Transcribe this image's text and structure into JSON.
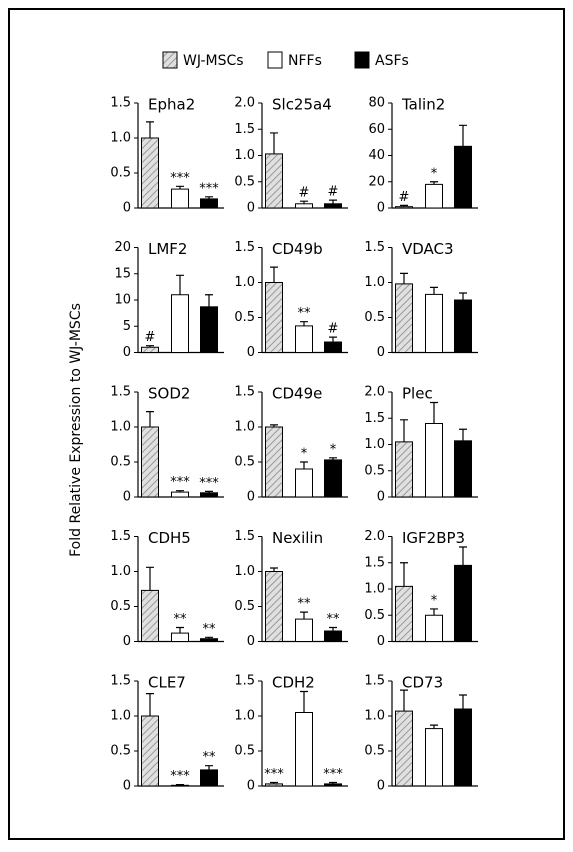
{
  "ylabel": "Fold Relative Expression to WJ-MSCs",
  "chart_data": [
    {
      "type": "bar",
      "title": "Epha2",
      "ylim": [
        0,
        1.5
      ],
      "yticks": [
        0,
        0.5,
        {
          "value": 1,
          "label": "1.0"
        },
        1.5
      ],
      "series": [
        {
          "name": "WJ-MSCs",
          "color": "#bbbbbb",
          "pattern": "hatch",
          "values": [
            1.0
          ],
          "errors": [
            0.23
          ],
          "annotations": [
            null
          ]
        },
        {
          "name": "NFFs",
          "color": "#ffffff",
          "values": [
            0.27
          ],
          "errors": [
            0.04
          ],
          "annotations": [
            "***"
          ]
        },
        {
          "name": "ASFs",
          "color": "#000000",
          "values": [
            0.13
          ],
          "errors": [
            0.03
          ],
          "annotations": [
            "***"
          ]
        }
      ]
    },
    {
      "type": "bar",
      "title": "Slc25a4",
      "ylim": [
        0,
        2
      ],
      "yticks": [
        0,
        0.5,
        {
          "value": 1,
          "label": "1.0"
        },
        1.5,
        {
          "value": 2,
          "label": "2.0"
        }
      ],
      "series": [
        {
          "name": "WJ-MSCs",
          "color": "#bbbbbb",
          "pattern": "hatch",
          "values": [
            1.03
          ],
          "errors": [
            0.4
          ],
          "annotations": [
            null
          ]
        },
        {
          "name": "NFFs",
          "color": "#ffffff",
          "values": [
            0.08
          ],
          "errors": [
            0.05
          ],
          "annotations": [
            "#"
          ]
        },
        {
          "name": "ASFs",
          "color": "#000000",
          "values": [
            0.08
          ],
          "errors": [
            0.07
          ],
          "annotations": [
            "#"
          ]
        }
      ]
    },
    {
      "type": "bar",
      "title": "Talin2",
      "ylim": [
        0,
        80
      ],
      "yticks": [
        0,
        20,
        40,
        60,
        80
      ],
      "series": [
        {
          "name": "WJ-MSCs",
          "color": "#bbbbbb",
          "pattern": "hatch",
          "values": [
            1
          ],
          "errors": [
            1
          ],
          "annotations": [
            "#"
          ]
        },
        {
          "name": "NFFs",
          "color": "#ffffff",
          "values": [
            18
          ],
          "errors": [
            2
          ],
          "annotations": [
            "*"
          ]
        },
        {
          "name": "ASFs",
          "color": "#000000",
          "values": [
            47
          ],
          "errors": [
            16
          ],
          "annotations": [
            null
          ]
        }
      ]
    },
    {
      "type": "bar",
      "title": "LMF2",
      "ylim": [
        0,
        20
      ],
      "yticks": [
        0,
        5,
        10,
        15,
        20
      ],
      "series": [
        {
          "name": "WJ-MSCs",
          "color": "#bbbbbb",
          "pattern": "hatch",
          "values": [
            1
          ],
          "errors": [
            0.3
          ],
          "annotations": [
            "#"
          ]
        },
        {
          "name": "NFFs",
          "color": "#ffffff",
          "values": [
            11
          ],
          "errors": [
            3.7
          ],
          "annotations": [
            null
          ]
        },
        {
          "name": "ASFs",
          "color": "#000000",
          "values": [
            8.7
          ],
          "errors": [
            2.3
          ],
          "annotations": [
            null
          ]
        }
      ]
    },
    {
      "type": "bar",
      "title": "CD49b",
      "ylim": [
        0,
        1.5
      ],
      "yticks": [
        0,
        0.5,
        {
          "value": 1,
          "label": "1.0"
        },
        1.5
      ],
      "series": [
        {
          "name": "WJ-MSCs",
          "color": "#bbbbbb",
          "pattern": "hatch",
          "values": [
            1.0
          ],
          "errors": [
            0.22
          ],
          "annotations": [
            null
          ]
        },
        {
          "name": "NFFs",
          "color": "#ffffff",
          "values": [
            0.38
          ],
          "errors": [
            0.06
          ],
          "annotations": [
            "**"
          ]
        },
        {
          "name": "ASFs",
          "color": "#000000",
          "values": [
            0.15
          ],
          "errors": [
            0.07
          ],
          "annotations": [
            "#"
          ]
        }
      ]
    },
    {
      "type": "bar",
      "title": "VDAC3",
      "ylim": [
        0,
        1.5
      ],
      "yticks": [
        0,
        0.5,
        {
          "value": 1,
          "label": "1.0"
        },
        1.5
      ],
      "series": [
        {
          "name": "WJ-MSCs",
          "color": "#bbbbbb",
          "pattern": "hatch",
          "values": [
            0.98
          ],
          "errors": [
            0.15
          ],
          "annotations": [
            null
          ]
        },
        {
          "name": "NFFs",
          "color": "#ffffff",
          "values": [
            0.83
          ],
          "errors": [
            0.1
          ],
          "annotations": [
            null
          ]
        },
        {
          "name": "ASFs",
          "color": "#000000",
          "values": [
            0.75
          ],
          "errors": [
            0.1
          ],
          "annotations": [
            null
          ]
        }
      ]
    },
    {
      "type": "bar",
      "title": "SOD2",
      "ylim": [
        0,
        1.5
      ],
      "yticks": [
        0,
        0.5,
        {
          "value": 1,
          "label": "1.0"
        },
        1.5
      ],
      "series": [
        {
          "name": "WJ-MSCs",
          "color": "#bbbbbb",
          "pattern": "hatch",
          "values": [
            1.0
          ],
          "errors": [
            0.22
          ],
          "annotations": [
            null
          ]
        },
        {
          "name": "NFFs",
          "color": "#ffffff",
          "values": [
            0.07
          ],
          "errors": [
            0.02
          ],
          "annotations": [
            "***"
          ]
        },
        {
          "name": "ASFs",
          "color": "#000000",
          "values": [
            0.06
          ],
          "errors": [
            0.02
          ],
          "annotations": [
            "***"
          ]
        }
      ]
    },
    {
      "type": "bar",
      "title": "CD49e",
      "ylim": [
        0,
        1.5
      ],
      "yticks": [
        0,
        0.5,
        {
          "value": 1,
          "label": "1.0"
        },
        1.5
      ],
      "series": [
        {
          "name": "WJ-MSCs",
          "color": "#bbbbbb",
          "pattern": "hatch",
          "values": [
            1.0
          ],
          "errors": [
            0.03
          ],
          "annotations": [
            null
          ]
        },
        {
          "name": "NFFs",
          "color": "#ffffff",
          "values": [
            0.4
          ],
          "errors": [
            0.1
          ],
          "annotations": [
            "*"
          ]
        },
        {
          "name": "ASFs",
          "color": "#000000",
          "values": [
            0.53
          ],
          "errors": [
            0.03
          ],
          "annotations": [
            "*"
          ]
        }
      ]
    },
    {
      "type": "bar",
      "title": "Plec",
      "ylim": [
        0,
        2
      ],
      "yticks": [
        0,
        0.5,
        {
          "value": 1,
          "label": "1.0"
        },
        1.5,
        {
          "value": 2,
          "label": "2.0"
        }
      ],
      "series": [
        {
          "name": "WJ-MSCs",
          "color": "#bbbbbb",
          "pattern": "hatch",
          "values": [
            1.05
          ],
          "errors": [
            0.42
          ],
          "annotations": [
            null
          ]
        },
        {
          "name": "NFFs",
          "color": "#ffffff",
          "values": [
            1.4
          ],
          "errors": [
            0.4
          ],
          "annotations": [
            null
          ]
        },
        {
          "name": "ASFs",
          "color": "#000000",
          "values": [
            1.07
          ],
          "errors": [
            0.22
          ],
          "annotations": [
            null
          ]
        }
      ]
    },
    {
      "type": "bar",
      "title": "CDH5",
      "ylim": [
        0,
        1.5
      ],
      "yticks": [
        0,
        0.5,
        {
          "value": 1,
          "label": "1.0"
        },
        1.5
      ],
      "series": [
        {
          "name": "WJ-MSCs",
          "color": "#bbbbbb",
          "pattern": "hatch",
          "values": [
            0.73
          ],
          "errors": [
            0.33
          ],
          "annotations": [
            null
          ]
        },
        {
          "name": "NFFs",
          "color": "#ffffff",
          "values": [
            0.12
          ],
          "errors": [
            0.08
          ],
          "annotations": [
            "**"
          ]
        },
        {
          "name": "ASFs",
          "color": "#000000",
          "values": [
            0.04
          ],
          "errors": [
            0.02
          ],
          "annotations": [
            "**"
          ]
        }
      ]
    },
    {
      "type": "bar",
      "title": "Nexilin",
      "ylim": [
        0,
        1.5
      ],
      "yticks": [
        0,
        0.5,
        {
          "value": 1,
          "label": "1.0"
        },
        1.5
      ],
      "series": [
        {
          "name": "WJ-MSCs",
          "color": "#bbbbbb",
          "pattern": "hatch",
          "values": [
            1.0
          ],
          "errors": [
            0.05
          ],
          "annotations": [
            null
          ]
        },
        {
          "name": "NFFs",
          "color": "#ffffff",
          "values": [
            0.32
          ],
          "errors": [
            0.1
          ],
          "annotations": [
            "**"
          ]
        },
        {
          "name": "ASFs",
          "color": "#000000",
          "values": [
            0.15
          ],
          "errors": [
            0.05
          ],
          "annotations": [
            "**"
          ]
        }
      ]
    },
    {
      "type": "bar",
      "title": "IGF2BP3",
      "ylim": [
        0,
        2
      ],
      "yticks": [
        0,
        0.5,
        {
          "value": 1,
          "label": "1.0"
        },
        1.5,
        {
          "value": 2,
          "label": "2.0"
        }
      ],
      "series": [
        {
          "name": "WJ-MSCs",
          "color": "#bbbbbb",
          "pattern": "hatch",
          "values": [
            1.05
          ],
          "errors": [
            0.45
          ],
          "annotations": [
            null
          ]
        },
        {
          "name": "NFFs",
          "color": "#ffffff",
          "values": [
            0.5
          ],
          "errors": [
            0.12
          ],
          "annotations": [
            "*"
          ]
        },
        {
          "name": "ASFs",
          "color": "#000000",
          "values": [
            1.45
          ],
          "errors": [
            0.35
          ],
          "annotations": [
            null
          ]
        }
      ]
    },
    {
      "type": "bar",
      "title": "CLE7",
      "ylim": [
        0,
        1.5
      ],
      "yticks": [
        0,
        0.5,
        {
          "value": 1,
          "label": "1.0"
        },
        1.5
      ],
      "series": [
        {
          "name": "WJ-MSCs",
          "color": "#bbbbbb",
          "pattern": "hatch",
          "values": [
            1.0
          ],
          "errors": [
            0.32
          ],
          "annotations": [
            null
          ]
        },
        {
          "name": "NFFs",
          "color": "#ffffff",
          "values": [
            0.01
          ],
          "errors": [
            0.01
          ],
          "annotations": [
            "***"
          ]
        },
        {
          "name": "ASFs",
          "color": "#000000",
          "values": [
            0.23
          ],
          "errors": [
            0.06
          ],
          "annotations": [
            "**"
          ]
        }
      ]
    },
    {
      "type": "bar",
      "title": "CDH2",
      "ylim": [
        0,
        1.5
      ],
      "yticks": [
        0,
        0.5,
        {
          "value": 1,
          "label": "1.0"
        },
        1.5
      ],
      "series": [
        {
          "name": "WJ-MSCs",
          "color": "#bbbbbb",
          "pattern": "hatch",
          "values": [
            0.03
          ],
          "errors": [
            0.02
          ],
          "annotations": [
            "***"
          ]
        },
        {
          "name": "NFFs",
          "color": "#ffffff",
          "values": [
            1.05
          ],
          "errors": [
            0.3
          ],
          "annotations": [
            null
          ]
        },
        {
          "name": "ASFs",
          "color": "#000000",
          "values": [
            0.03
          ],
          "errors": [
            0.02
          ],
          "annotations": [
            "***"
          ]
        }
      ]
    },
    {
      "type": "bar",
      "title": "CD73",
      "ylim": [
        0,
        1.5
      ],
      "yticks": [
        0,
        0.5,
        {
          "value": 1,
          "label": "1.0"
        },
        1.5
      ],
      "series": [
        {
          "name": "WJ-MSCs",
          "color": "#bbbbbb",
          "pattern": "hatch",
          "values": [
            1.07
          ],
          "errors": [
            0.3
          ],
          "annotations": [
            null
          ]
        },
        {
          "name": "NFFs",
          "color": "#ffffff",
          "values": [
            0.82
          ],
          "errors": [
            0.05
          ],
          "annotations": [
            null
          ]
        },
        {
          "name": "ASFs",
          "color": "#000000",
          "values": [
            1.1
          ],
          "errors": [
            0.2
          ],
          "annotations": [
            null
          ]
        }
      ]
    }
  ]
}
